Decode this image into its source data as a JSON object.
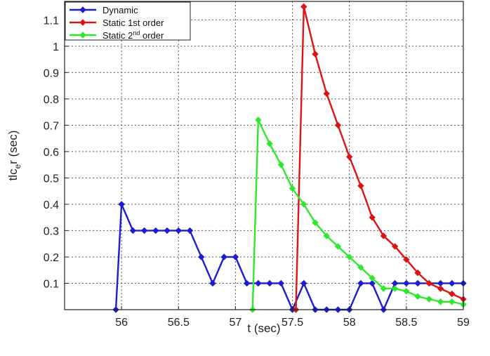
{
  "chart_data": {
    "type": "line",
    "xlabel": "t (sec)",
    "ylabel_parts": [
      "tlc",
      "e",
      "r (sec)"
    ],
    "xlim": [
      55.5,
      59
    ],
    "ylim": [
      0,
      1.17
    ],
    "x_ticks": [
      56,
      56.5,
      57,
      57.5,
      58,
      58.5,
      59
    ],
    "x_tick_labels": [
      "56",
      "56.5",
      "57",
      "57.5",
      "58",
      "58.5",
      "59"
    ],
    "y_ticks": [
      0.1,
      0.2,
      0.3,
      0.4,
      0.5,
      0.6,
      0.7,
      0.8,
      0.9,
      1,
      1.1
    ],
    "y_tick_labels": [
      "0.1",
      "0.2",
      "0.3",
      "0.4",
      "0.5",
      "0.6",
      "0.7",
      "0.8",
      "0.9",
      "1",
      "1.1"
    ],
    "grid": true,
    "legend_position": "top-left",
    "series": [
      {
        "name": "Dynamic",
        "color": "#1c1cd0",
        "x": [
          55.95,
          56.0,
          56.1,
          56.2,
          56.3,
          56.4,
          56.5,
          56.6,
          56.7,
          56.8,
          56.9,
          57.0,
          57.1,
          57.2,
          57.3,
          57.4,
          57.5,
          57.6,
          57.7,
          57.8,
          57.9,
          58.0,
          58.1,
          58.2,
          58.3,
          58.4,
          58.5,
          58.6,
          58.7,
          58.8,
          58.9,
          59.0
        ],
        "y": [
          0.0,
          0.4,
          0.3,
          0.3,
          0.3,
          0.3,
          0.3,
          0.3,
          0.2,
          0.1,
          0.2,
          0.2,
          0.1,
          0.1,
          0.1,
          0.1,
          0.0,
          0.1,
          0.0,
          0.0,
          0.0,
          0.0,
          0.1,
          0.1,
          0.0,
          0.1,
          0.1,
          0.1,
          0.1,
          0.1,
          0.1,
          0.1
        ]
      },
      {
        "name_parts": [
          "Static 1st order"
        ],
        "name": "Static 1st order",
        "color": "#dd1414",
        "x": [
          57.53,
          57.6,
          57.7,
          57.8,
          57.9,
          58.0,
          58.1,
          58.2,
          58.3,
          58.4,
          58.5,
          58.6,
          58.7,
          58.8,
          58.9,
          59.0
        ],
        "y": [
          0.0,
          1.15,
          0.97,
          0.82,
          0.7,
          0.58,
          0.47,
          0.35,
          0.28,
          0.24,
          0.19,
          0.14,
          0.1,
          0.08,
          0.06,
          0.04
        ]
      },
      {
        "name_parts": [
          "Static 2",
          "nd",
          " order"
        ],
        "name": "Static 2nd order",
        "color": "#2ee82e",
        "x": [
          57.15,
          57.2,
          57.3,
          57.4,
          57.5,
          57.6,
          57.7,
          57.8,
          57.9,
          58.0,
          58.1,
          58.2,
          58.3,
          58.4,
          58.5,
          58.6,
          58.7,
          58.8,
          58.9,
          59.0
        ],
        "y": [
          0.0,
          0.72,
          0.63,
          0.55,
          0.46,
          0.4,
          0.33,
          0.28,
          0.24,
          0.2,
          0.16,
          0.12,
          0.08,
          0.08,
          0.07,
          0.05,
          0.04,
          0.03,
          0.03,
          0.02
        ]
      }
    ]
  }
}
